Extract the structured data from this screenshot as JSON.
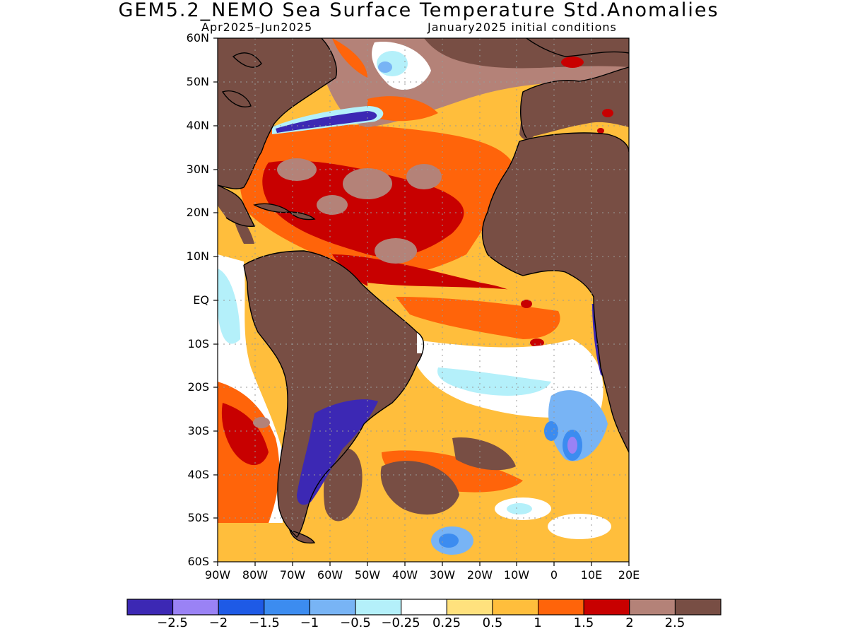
{
  "title": "GEM5.2_NEMO Sea Surface Temperature Std.Anomalies",
  "subtitle_left": "Apr2025–Jun2025",
  "subtitle_right": "January2025 initial conditions",
  "y_axis_labels": [
    "60N",
    "50N",
    "40N",
    "30N",
    "20N",
    "10N",
    "EQ",
    "10S",
    "20S",
    "30S",
    "40S",
    "50S",
    "60S"
  ],
  "x_axis_labels": [
    "90W",
    "80W",
    "70W",
    "60W",
    "50W",
    "40W",
    "30W",
    "20W",
    "10W",
    "0",
    "10E",
    "20E"
  ],
  "colorbar": {
    "colors": [
      "#3c28b4",
      "#9a82f5",
      "#1e5ae6",
      "#3c8cf0",
      "#78b4f5",
      "#b4f0fa",
      "#ffffff",
      "#ffe17d",
      "#ffbe3c",
      "#ff640a",
      "#c80000",
      "#b48278",
      "#784e44"
    ],
    "labels": [
      "−2.5",
      "−2",
      "−1.5",
      "−1",
      "−0.5",
      "−0.25",
      "0.25",
      "0.5",
      "1",
      "1.5",
      "2",
      "2.5"
    ]
  },
  "colors": {
    "land": "#784e44",
    "ocean_neutral": "#ffffff",
    "coastline": "#000000"
  }
}
